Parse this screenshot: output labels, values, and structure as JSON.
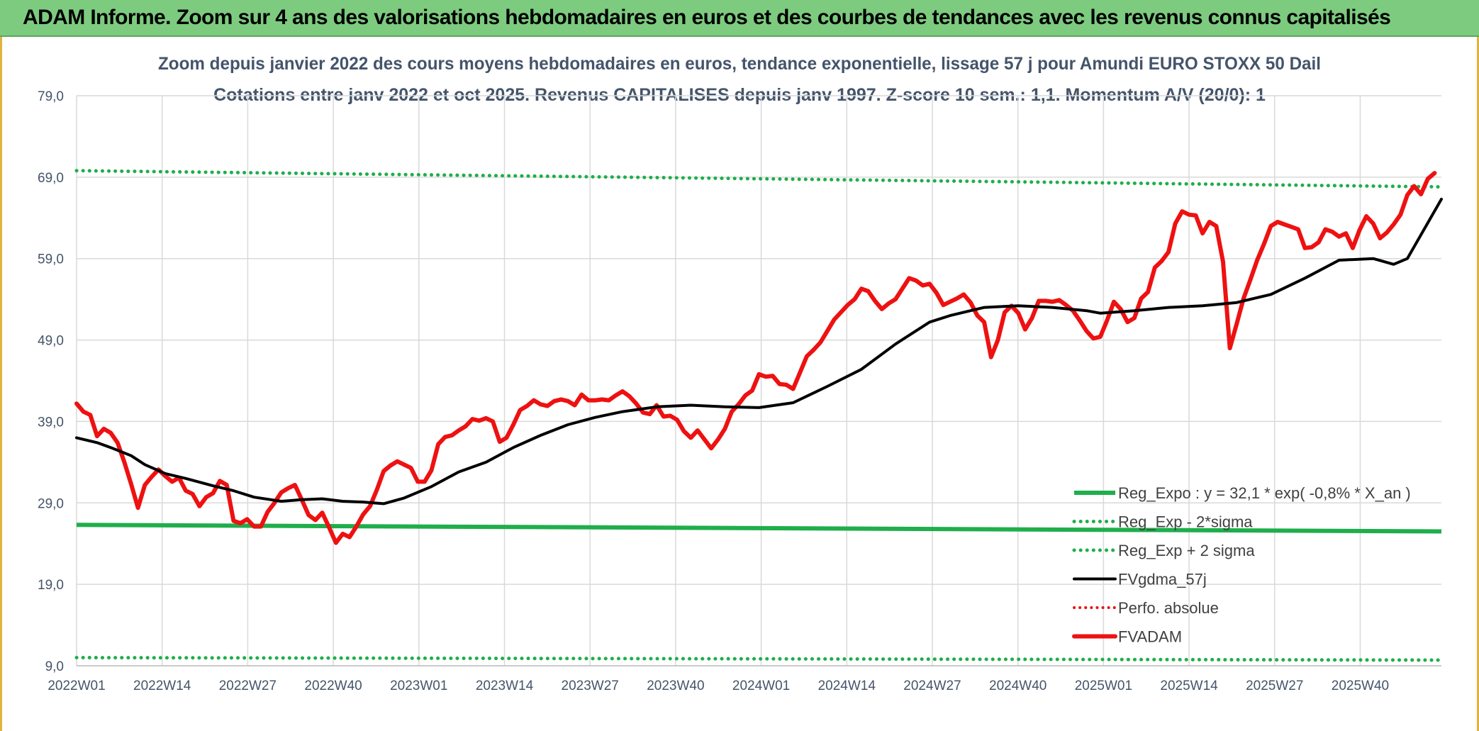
{
  "header": {
    "title": "ADAM Informe. Zoom sur 4 ans des valorisations hebdomadaires en euros et des courbes de tendances avec les revenus connus capitalisés"
  },
  "chart_data": {
    "type": "line",
    "title": "Zoom depuis janvier 2022 des cours moyens hebdomadaires en euros, tendance exponentielle, lissage 57 j pour Amundi EURO STOXX 50 Dail",
    "subtitle": "Cotations entre janv 2022 et oct 2025. Revenus CAPITALISES depuis janv 1997. Z-score 10 sem.: 1,1. Momentum A/V (20/0): 1",
    "xlabel": "",
    "ylabel": "",
    "x_ticks": [
      "2022W01",
      "2022W14",
      "2022W27",
      "2022W40",
      "2023W01",
      "2023W14",
      "2023W27",
      "2023W40",
      "2024W01",
      "2024W14",
      "2024W27",
      "2024W40",
      "2025W01",
      "2025W14",
      "2025W27",
      "2025W40"
    ],
    "y_ticks": [
      "79,0",
      "69,0",
      "59,0",
      "49,0",
      "39,0",
      "29,0",
      "19,0",
      "9,0"
    ],
    "ylim": [
      9,
      79
    ],
    "x_range_weeks": [
      0,
      200
    ],
    "grid": true,
    "legend_position": "bottom-right",
    "colors": {
      "reg_expo": "#1fae4b",
      "band": "#1fae4b",
      "fvgdma": "#000000",
      "perfo": "#e81414",
      "fvadam": "#ee1111",
      "axis_text": "#44546a",
      "grid": "#d9d9d9"
    },
    "series": [
      {
        "name": "Reg_Expo : y = 32,1 * exp( -0,8% *  X_an )",
        "style": "solid-thick",
        "points": [
          [
            0,
            26.3
          ],
          [
            200,
            25.5
          ]
        ]
      },
      {
        "name": "Reg_Exp - 2*sigma",
        "style": "dotted",
        "points": [
          [
            0,
            10.0
          ],
          [
            200,
            9.7
          ]
        ]
      },
      {
        "name": "Reg_Exp + 2 sigma",
        "style": "dotted",
        "points": [
          [
            0,
            69.8
          ],
          [
            200,
            67.8
          ]
        ]
      },
      {
        "name": "FVgdma_57j",
        "style": "solid",
        "points": [
          [
            0,
            37.0
          ],
          [
            3,
            36.4
          ],
          [
            5,
            35.8
          ],
          [
            8,
            34.8
          ],
          [
            10,
            33.7
          ],
          [
            13,
            32.6
          ],
          [
            16,
            32.0
          ],
          [
            20,
            31.1
          ],
          [
            23,
            30.5
          ],
          [
            26,
            29.7
          ],
          [
            30,
            29.2
          ],
          [
            33,
            29.4
          ],
          [
            36,
            29.5
          ],
          [
            39,
            29.2
          ],
          [
            42,
            29.1
          ],
          [
            45,
            28.9
          ],
          [
            48,
            29.6
          ],
          [
            52,
            31.0
          ],
          [
            56,
            32.8
          ],
          [
            60,
            34.0
          ],
          [
            64,
            35.8
          ],
          [
            68,
            37.3
          ],
          [
            72,
            38.6
          ],
          [
            76,
            39.5
          ],
          [
            80,
            40.2
          ],
          [
            85,
            40.8
          ],
          [
            90,
            41.0
          ],
          [
            95,
            40.8
          ],
          [
            100,
            40.7
          ],
          [
            105,
            41.3
          ],
          [
            110,
            43.3
          ],
          [
            115,
            45.4
          ],
          [
            120,
            48.5
          ],
          [
            125,
            51.2
          ],
          [
            128,
            52.0
          ],
          [
            133,
            53.0
          ],
          [
            138,
            53.2
          ],
          [
            143,
            53.0
          ],
          [
            148,
            52.6
          ],
          [
            150,
            52.3
          ],
          [
            155,
            52.6
          ],
          [
            160,
            53.0
          ],
          [
            165,
            53.2
          ],
          [
            170,
            53.6
          ],
          [
            175,
            54.6
          ],
          [
            180,
            56.6
          ],
          [
            185,
            58.8
          ],
          [
            190,
            59.0
          ],
          [
            193,
            58.3
          ],
          [
            195,
            59.0
          ],
          [
            200,
            66.3
          ]
        ]
      },
      {
        "name": "Perfo. absolue",
        "style": "dotted-red",
        "points": []
      },
      {
        "name": "FVADAM",
        "style": "solid-thick",
        "points": [
          [
            0,
            41.2
          ],
          [
            1,
            40.2
          ],
          [
            2,
            39.8
          ],
          [
            3,
            37.2
          ],
          [
            4,
            38.1
          ],
          [
            5,
            37.6
          ],
          [
            6,
            36.4
          ],
          [
            7,
            34.0
          ],
          [
            8,
            31.3
          ],
          [
            9,
            28.4
          ],
          [
            10,
            31.2
          ],
          [
            11,
            32.2
          ],
          [
            12,
            33.1
          ],
          [
            13,
            32.3
          ],
          [
            14,
            31.6
          ],
          [
            15,
            32.1
          ],
          [
            16,
            30.5
          ],
          [
            17,
            30.1
          ],
          [
            18,
            28.6
          ],
          [
            19,
            29.7
          ],
          [
            20,
            30.2
          ],
          [
            21,
            31.7
          ],
          [
            22,
            31.2
          ],
          [
            23,
            26.8
          ],
          [
            24,
            26.5
          ],
          [
            25,
            27.0
          ],
          [
            26,
            26.1
          ],
          [
            27,
            26.1
          ],
          [
            28,
            27.9
          ],
          [
            29,
            29.0
          ],
          [
            30,
            30.3
          ],
          [
            31,
            30.8
          ],
          [
            32,
            31.2
          ],
          [
            33,
            29.4
          ],
          [
            34,
            27.5
          ],
          [
            35,
            26.9
          ],
          [
            36,
            27.8
          ],
          [
            37,
            26.0
          ],
          [
            38,
            24.1
          ],
          [
            39,
            25.2
          ],
          [
            40,
            24.8
          ],
          [
            41,
            26.1
          ],
          [
            42,
            27.6
          ],
          [
            43,
            28.6
          ],
          [
            44,
            30.6
          ],
          [
            45,
            32.9
          ],
          [
            46,
            33.6
          ],
          [
            47,
            34.1
          ],
          [
            48,
            33.7
          ],
          [
            49,
            33.3
          ],
          [
            50,
            31.6
          ],
          [
            51,
            31.6
          ],
          [
            52,
            33.0
          ],
          [
            53,
            36.2
          ],
          [
            54,
            37.1
          ],
          [
            55,
            37.3
          ],
          [
            56,
            37.9
          ],
          [
            57,
            38.4
          ],
          [
            58,
            39.3
          ],
          [
            59,
            39.1
          ],
          [
            60,
            39.4
          ],
          [
            61,
            39.0
          ],
          [
            62,
            36.5
          ],
          [
            63,
            37.0
          ],
          [
            64,
            38.6
          ],
          [
            65,
            40.4
          ],
          [
            66,
            40.9
          ],
          [
            67,
            41.6
          ],
          [
            68,
            41.1
          ],
          [
            69,
            40.9
          ],
          [
            70,
            41.5
          ],
          [
            71,
            41.7
          ],
          [
            72,
            41.5
          ],
          [
            73,
            41.0
          ],
          [
            74,
            42.3
          ],
          [
            75,
            41.6
          ],
          [
            76,
            41.6
          ],
          [
            77,
            41.7
          ],
          [
            78,
            41.6
          ],
          [
            79,
            42.2
          ],
          [
            80,
            42.7
          ],
          [
            81,
            42.1
          ],
          [
            82,
            41.2
          ],
          [
            83,
            40.1
          ],
          [
            84,
            39.9
          ],
          [
            85,
            41.0
          ],
          [
            86,
            39.6
          ],
          [
            87,
            39.7
          ],
          [
            88,
            39.2
          ],
          [
            89,
            37.8
          ],
          [
            90,
            37.0
          ],
          [
            91,
            37.9
          ],
          [
            92,
            36.8
          ],
          [
            93,
            35.7
          ],
          [
            94,
            36.8
          ],
          [
            95,
            38.1
          ],
          [
            96,
            40.2
          ],
          [
            97,
            41.1
          ],
          [
            98,
            42.2
          ],
          [
            99,
            42.8
          ],
          [
            100,
            44.8
          ],
          [
            101,
            44.5
          ],
          [
            102,
            44.6
          ],
          [
            103,
            43.6
          ],
          [
            104,
            43.5
          ],
          [
            105,
            43.0
          ],
          [
            106,
            45.0
          ],
          [
            107,
            47.0
          ],
          [
            108,
            47.8
          ],
          [
            109,
            48.7
          ],
          [
            110,
            50.1
          ],
          [
            111,
            51.5
          ],
          [
            112,
            52.4
          ],
          [
            113,
            53.3
          ],
          [
            114,
            54.0
          ],
          [
            115,
            55.3
          ],
          [
            116,
            55.0
          ],
          [
            117,
            53.8
          ],
          [
            118,
            52.8
          ],
          [
            119,
            53.5
          ],
          [
            120,
            54.0
          ],
          [
            121,
            55.3
          ],
          [
            122,
            56.6
          ],
          [
            123,
            56.3
          ],
          [
            124,
            55.7
          ],
          [
            125,
            55.9
          ],
          [
            126,
            54.8
          ],
          [
            127,
            53.3
          ],
          [
            128,
            53.7
          ],
          [
            129,
            54.1
          ],
          [
            130,
            54.6
          ],
          [
            131,
            53.6
          ],
          [
            132,
            52.0
          ],
          [
            133,
            51.2
          ],
          [
            134,
            46.9
          ],
          [
            135,
            49.0
          ],
          [
            136,
            52.4
          ],
          [
            137,
            53.2
          ],
          [
            138,
            52.3
          ],
          [
            139,
            50.3
          ],
          [
            140,
            51.7
          ],
          [
            141,
            53.8
          ],
          [
            142,
            53.8
          ],
          [
            143,
            53.7
          ],
          [
            144,
            53.9
          ],
          [
            145,
            53.3
          ],
          [
            146,
            52.6
          ],
          [
            147,
            51.4
          ],
          [
            148,
            50.1
          ],
          [
            149,
            49.2
          ],
          [
            150,
            49.4
          ],
          [
            151,
            51.4
          ],
          [
            152,
            53.7
          ],
          [
            153,
            52.8
          ],
          [
            154,
            51.2
          ],
          [
            155,
            51.7
          ],
          [
            156,
            54.1
          ],
          [
            157,
            54.9
          ],
          [
            158,
            57.9
          ],
          [
            159,
            58.7
          ],
          [
            160,
            59.8
          ],
          [
            161,
            63.3
          ],
          [
            162,
            64.8
          ],
          [
            163,
            64.4
          ],
          [
            164,
            64.3
          ],
          [
            165,
            62.1
          ],
          [
            166,
            63.5
          ],
          [
            167,
            63.0
          ],
          [
            168,
            58.6
          ],
          [
            169,
            48.0
          ],
          [
            170,
            51.0
          ],
          [
            171,
            54.1
          ],
          [
            172,
            56.4
          ],
          [
            173,
            58.8
          ],
          [
            174,
            60.8
          ],
          [
            175,
            63.0
          ],
          [
            176,
            63.5
          ],
          [
            177,
            63.2
          ],
          [
            178,
            62.9
          ],
          [
            179,
            62.6
          ],
          [
            180,
            60.3
          ],
          [
            181,
            60.4
          ],
          [
            182,
            61.0
          ],
          [
            183,
            62.6
          ],
          [
            184,
            62.3
          ],
          [
            185,
            61.7
          ],
          [
            186,
            62.1
          ],
          [
            187,
            60.3
          ],
          [
            188,
            62.5
          ],
          [
            189,
            64.2
          ],
          [
            190,
            63.3
          ],
          [
            191,
            61.5
          ],
          [
            192,
            62.2
          ],
          [
            193,
            63.2
          ],
          [
            194,
            64.4
          ],
          [
            195,
            66.8
          ],
          [
            196,
            67.9
          ],
          [
            197,
            66.9
          ],
          [
            198,
            68.8
          ],
          [
            199,
            69.5
          ]
        ]
      }
    ]
  }
}
